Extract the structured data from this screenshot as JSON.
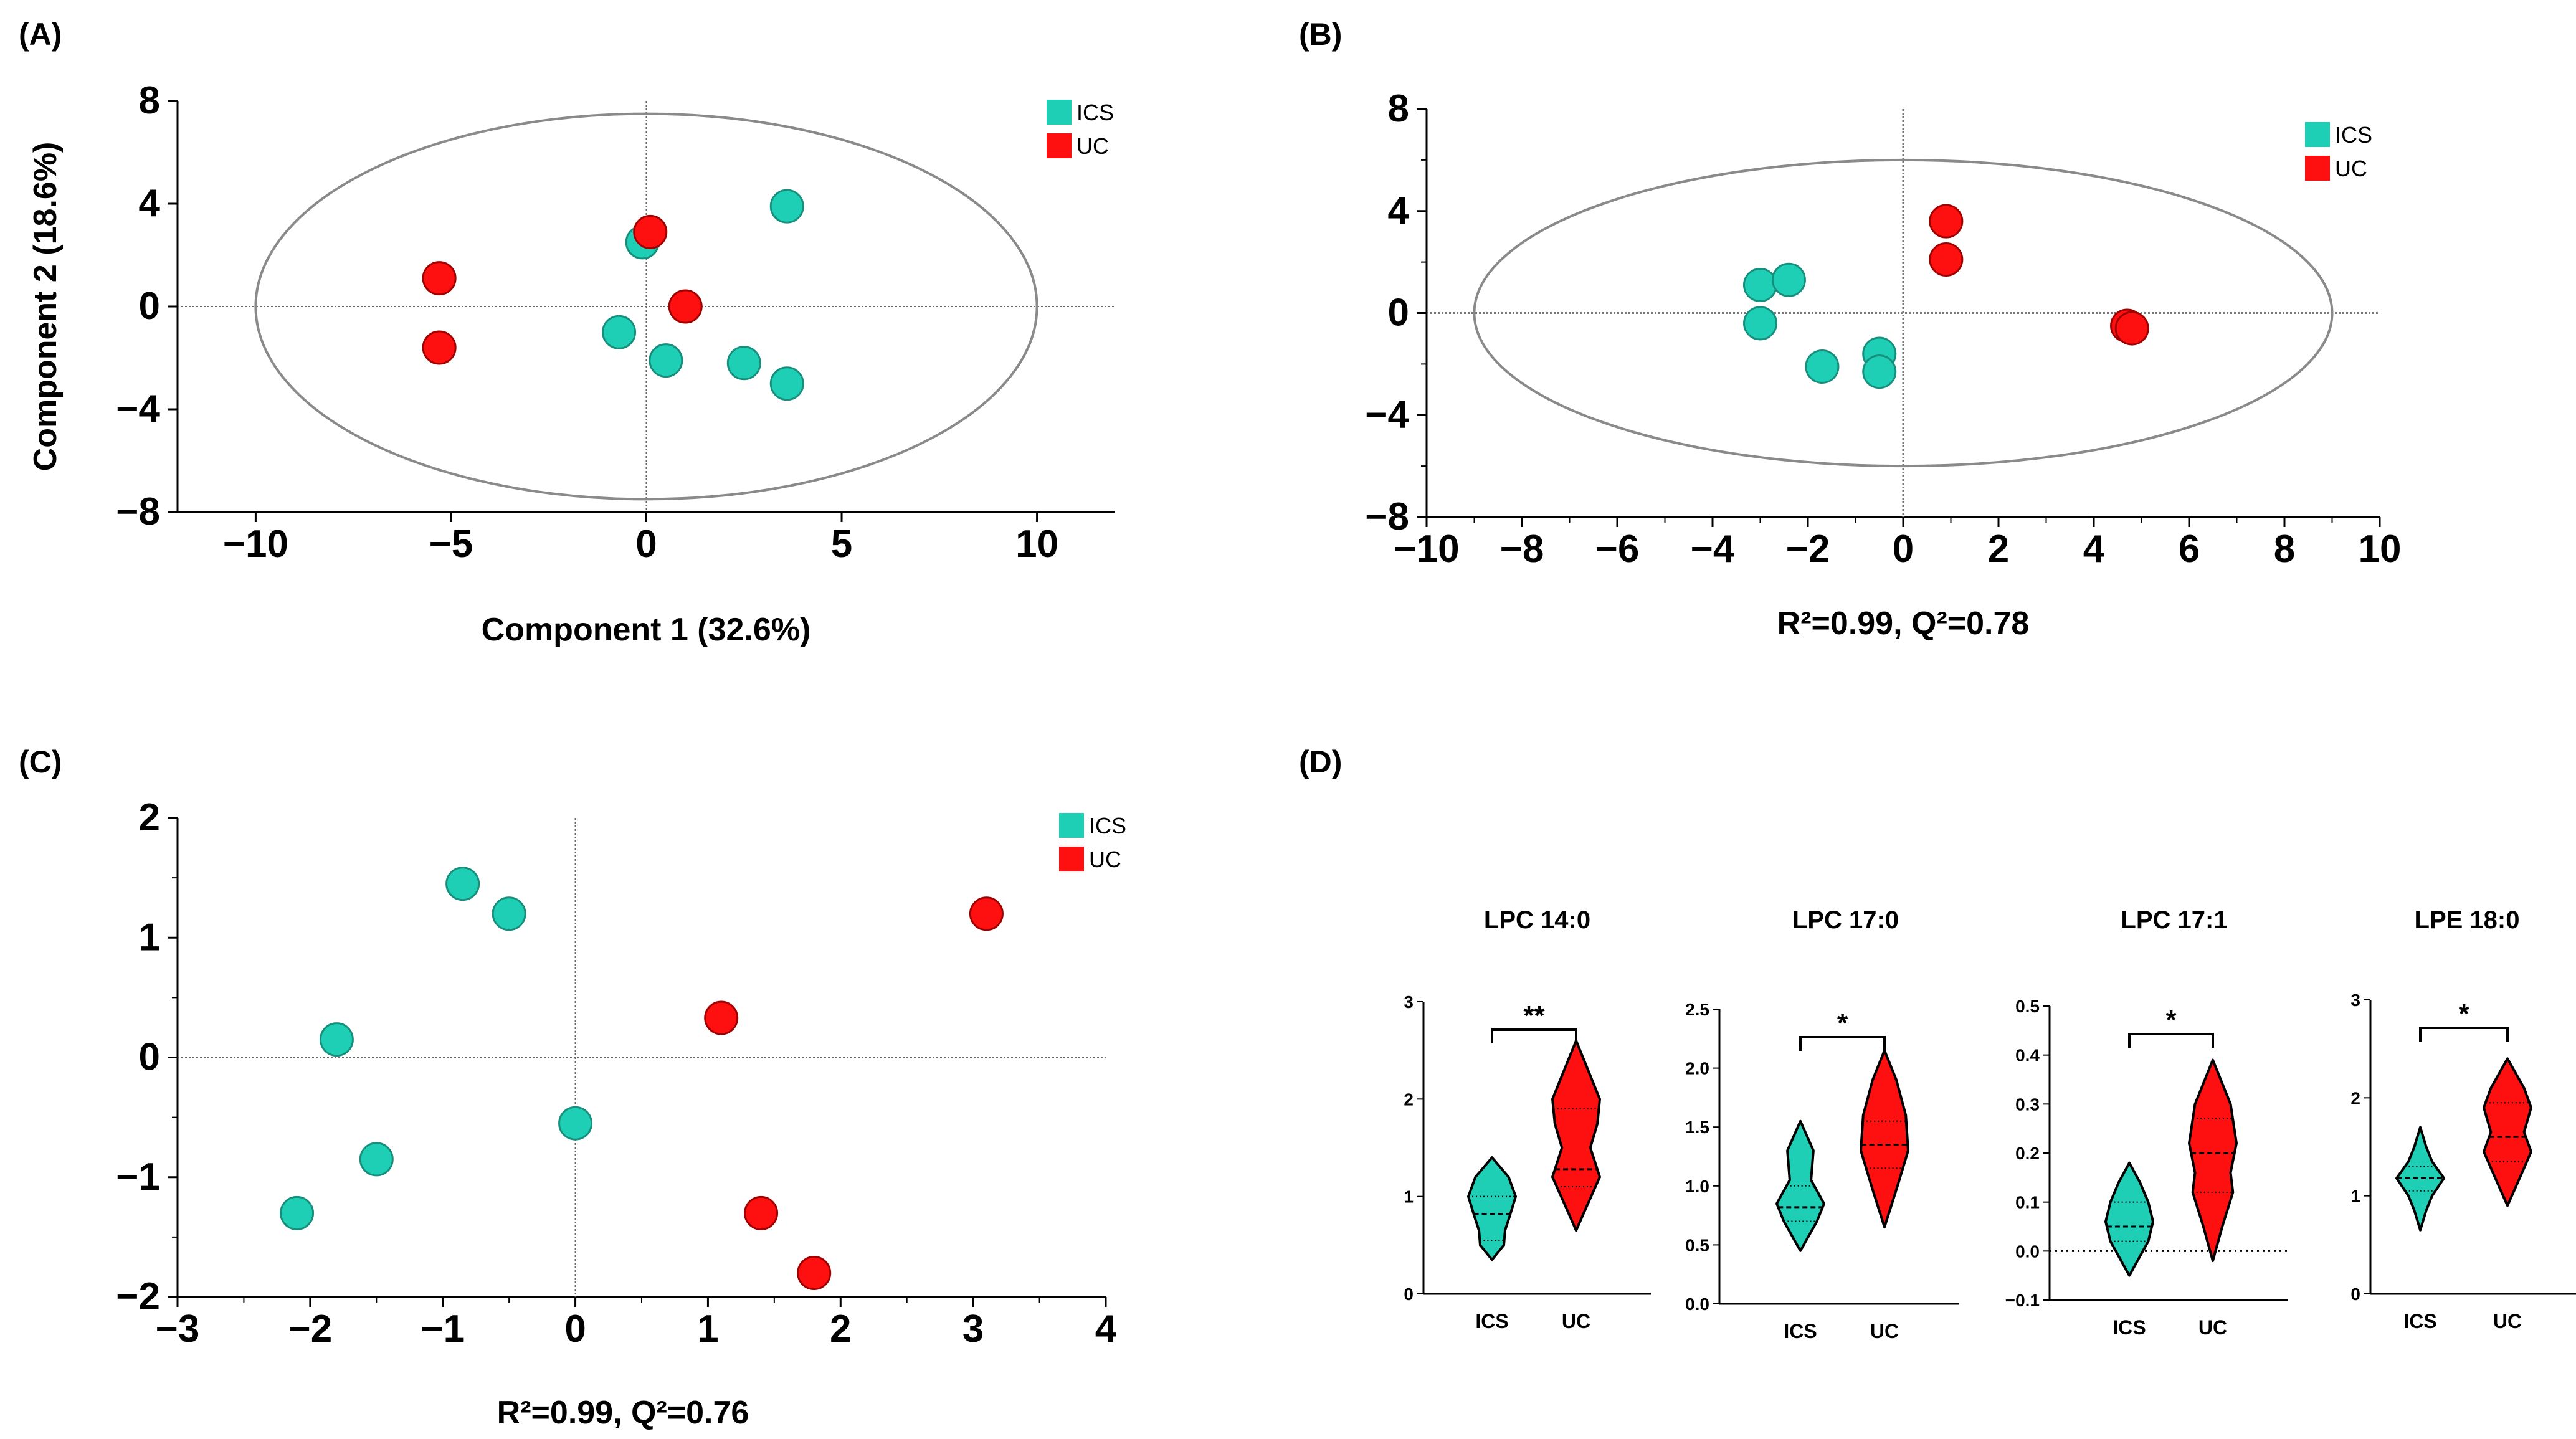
{
  "figure": {
    "panel_labels": [
      "(A)",
      "(B)",
      "(C)",
      "(D)"
    ]
  },
  "colors": {
    "ics": "#1fcfb5",
    "uc": "#ff1010",
    "ics_stroke": "#178f7d",
    "uc_stroke": "#a00000",
    "axis": "#000000",
    "ellipse": "#8a8a8a"
  },
  "legend": {
    "ics": "ICS",
    "uc": "UC"
  },
  "chart_data": [
    {
      "panel": "A",
      "type": "scatter",
      "xlabel": "Component 1 (32.6%)",
      "ylabel": "Component 2 (18.6%)",
      "xlim": [
        -12,
        12
      ],
      "ylim": [
        -8,
        8
      ],
      "xticks": [
        -10,
        -5,
        0,
        5,
        10
      ],
      "yticks": [
        -8,
        -4,
        0,
        4,
        8
      ],
      "ellipse": {
        "cx": 0,
        "cy": 0,
        "rx": 10,
        "ry": 7.5
      },
      "series": [
        {
          "name": "ICS",
          "points": [
            [
              -0.7,
              -1.0
            ],
            [
              -0.1,
              2.5
            ],
            [
              0.5,
              -2.1
            ],
            [
              2.5,
              -2.2
            ],
            [
              3.6,
              -3.0
            ],
            [
              3.6,
              3.9
            ]
          ]
        },
        {
          "name": "UC",
          "points": [
            [
              -5.3,
              1.1
            ],
            [
              -5.3,
              -1.6
            ],
            [
              0.1,
              2.9
            ],
            [
              1.0,
              0.0
            ]
          ]
        }
      ]
    },
    {
      "panel": "B",
      "type": "scatter",
      "xlabel": "R²=0.99, Q²=0.78",
      "ylabel": "",
      "xlim": [
        -10,
        10
      ],
      "ylim": [
        -8,
        8
      ],
      "xticks": [
        -10,
        -8,
        -6,
        -4,
        -2,
        0,
        2,
        4,
        6,
        8,
        10
      ],
      "yticks": [
        -8,
        -4,
        0,
        4,
        8
      ],
      "ellipse": {
        "cx": 0,
        "cy": 0,
        "rx": 9,
        "ry": 6
      },
      "series": [
        {
          "name": "ICS",
          "points": [
            [
              -3.0,
              1.1
            ],
            [
              -2.4,
              1.3
            ],
            [
              -3.0,
              -0.4
            ],
            [
              -1.7,
              -2.1
            ],
            [
              -0.5,
              -1.6
            ],
            [
              -0.5,
              -2.3
            ]
          ]
        },
        {
          "name": "UC",
          "points": [
            [
              0.9,
              3.6
            ],
            [
              0.9,
              2.1
            ],
            [
              4.7,
              -0.5
            ],
            [
              4.8,
              -0.6
            ]
          ]
        }
      ]
    },
    {
      "panel": "C",
      "type": "scatter",
      "xlabel": "R²=0.99, Q²=0.76",
      "ylabel": "",
      "xlim": [
        -3,
        4
      ],
      "ylim": [
        -2,
        2
      ],
      "xticks": [
        -3,
        -2,
        -1,
        0,
        1,
        2,
        3,
        4
      ],
      "yticks": [
        -2,
        -1,
        0,
        1,
        2
      ],
      "series": [
        {
          "name": "ICS",
          "points": [
            [
              -0.85,
              1.45
            ],
            [
              -0.5,
              1.2
            ],
            [
              -1.8,
              0.15
            ],
            [
              -1.5,
              -0.85
            ],
            [
              -2.1,
              -1.3
            ],
            [
              0.0,
              -0.55
            ]
          ]
        },
        {
          "name": "UC",
          "points": [
            [
              3.1,
              1.2
            ],
            [
              1.1,
              0.33
            ],
            [
              1.4,
              -1.3
            ],
            [
              1.8,
              -1.8
            ]
          ]
        }
      ]
    },
    {
      "panel": "D",
      "type": "violin",
      "categories": [
        "ICS",
        "UC"
      ],
      "plots": [
        {
          "title": "LPC 14:0",
          "ylim": [
            0,
            3
          ],
          "yticks": [
            0,
            1,
            2,
            3
          ],
          "significance": "**",
          "groups": [
            {
              "name": "ICS",
              "min": 0.35,
              "max": 1.4,
              "median": 0.82,
              "q1": 0.55,
              "q3": 1.0,
              "profile": [
                [
                  0.35,
                  0.0
                ],
                [
                  0.5,
                  0.5
                ],
                [
                  0.65,
                  0.55
                ],
                [
                  0.8,
                  0.75
                ],
                [
                  1.0,
                  1.0
                ],
                [
                  1.2,
                  0.7
                ],
                [
                  1.4,
                  0.0
                ]
              ]
            },
            {
              "name": "UC",
              "min": 0.65,
              "max": 2.6,
              "median": 1.28,
              "q1": 1.1,
              "q3": 1.9,
              "profile": [
                [
                  0.65,
                  0.0
                ],
                [
                  0.9,
                  0.45
                ],
                [
                  1.2,
                  1.0
                ],
                [
                  1.5,
                  0.6
                ],
                [
                  1.75,
                  0.9
                ],
                [
                  2.0,
                  1.0
                ],
                [
                  2.3,
                  0.5
                ],
                [
                  2.6,
                  0.0
                ]
              ]
            }
          ]
        },
        {
          "title": "LPC 17:0",
          "ylim": [
            0,
            2.5
          ],
          "yticks": [
            0.0,
            0.5,
            1.0,
            1.5,
            2.0,
            2.5
          ],
          "significance": "*",
          "groups": [
            {
              "name": "ICS",
              "min": 0.45,
              "max": 1.55,
              "median": 0.82,
              "q1": 0.7,
              "q3": 1.0,
              "profile": [
                [
                  0.45,
                  0.0
                ],
                [
                  0.7,
                  0.7
                ],
                [
                  0.85,
                  1.0
                ],
                [
                  1.05,
                  0.45
                ],
                [
                  1.3,
                  0.55
                ],
                [
                  1.55,
                  0.0
                ]
              ]
            },
            {
              "name": "UC",
              "min": 0.65,
              "max": 2.15,
              "median": 1.35,
              "q1": 1.15,
              "q3": 1.55,
              "profile": [
                [
                  0.65,
                  0.0
                ],
                [
                  1.0,
                  0.55
                ],
                [
                  1.3,
                  1.0
                ],
                [
                  1.6,
                  0.9
                ],
                [
                  1.9,
                  0.5
                ],
                [
                  2.15,
                  0.0
                ]
              ]
            }
          ]
        },
        {
          "title": "LPC 17:1",
          "ylim": [
            -0.1,
            0.5
          ],
          "yticks": [
            -0.1,
            0.0,
            0.1,
            0.2,
            0.3,
            0.4,
            0.5
          ],
          "significance": "*",
          "zero_line": true,
          "groups": [
            {
              "name": "ICS",
              "min": -0.05,
              "max": 0.18,
              "median": 0.05,
              "q1": 0.02,
              "q3": 0.1,
              "profile": [
                [
                  -0.05,
                  0.0
                ],
                [
                  0.02,
                  0.8
                ],
                [
                  0.06,
                  1.0
                ],
                [
                  0.1,
                  0.8
                ],
                [
                  0.14,
                  0.45
                ],
                [
                  0.18,
                  0.0
                ]
              ]
            },
            {
              "name": "UC",
              "min": -0.02,
              "max": 0.39,
              "median": 0.2,
              "q1": 0.12,
              "q3": 0.27,
              "profile": [
                [
                  -0.02,
                  0.0
                ],
                [
                  0.05,
                  0.4
                ],
                [
                  0.12,
                  0.85
                ],
                [
                  0.16,
                  0.75
                ],
                [
                  0.22,
                  1.0
                ],
                [
                  0.3,
                  0.75
                ],
                [
                  0.39,
                  0.0
                ]
              ]
            }
          ]
        },
        {
          "title": "LPE 18:0",
          "ylim": [
            0,
            3
          ],
          "yticks": [
            0,
            1,
            2,
            3
          ],
          "significance": "*",
          "groups": [
            {
              "name": "ICS",
              "min": 0.65,
              "max": 1.7,
              "median": 1.18,
              "q1": 1.05,
              "q3": 1.3,
              "profile": [
                [
                  0.65,
                  0.0
                ],
                [
                  0.85,
                  0.25
                ],
                [
                  1.0,
                  0.5
                ],
                [
                  1.18,
                  1.0
                ],
                [
                  1.35,
                  0.5
                ],
                [
                  1.5,
                  0.25
                ],
                [
                  1.7,
                  0.0
                ]
              ]
            },
            {
              "name": "UC",
              "min": 0.9,
              "max": 2.4,
              "median": 1.6,
              "q1": 1.35,
              "q3": 1.95,
              "profile": [
                [
                  0.9,
                  0.0
                ],
                [
                  1.2,
                  0.55
                ],
                [
                  1.45,
                  1.0
                ],
                [
                  1.65,
                  0.7
                ],
                [
                  1.9,
                  1.0
                ],
                [
                  2.1,
                  0.7
                ],
                [
                  2.4,
                  0.0
                ]
              ]
            }
          ]
        }
      ]
    }
  ]
}
